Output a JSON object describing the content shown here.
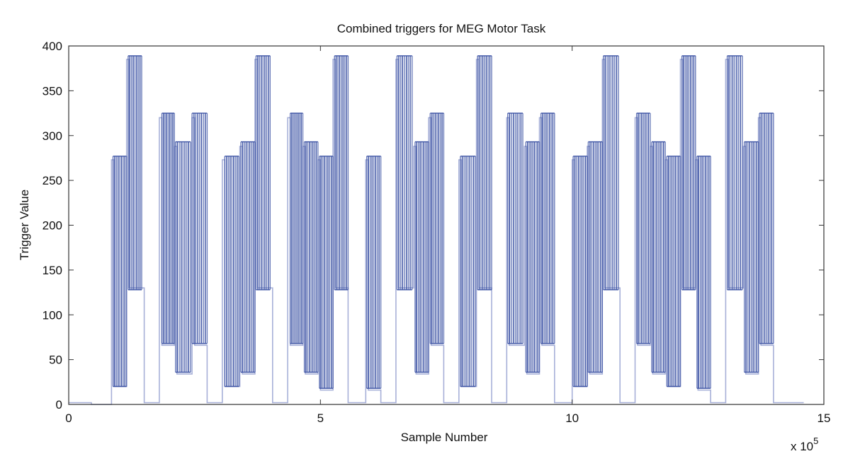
{
  "chart_data": {
    "type": "line",
    "title": "Combined triggers for MEG Motor Task",
    "xlabel": "Sample Number",
    "ylabel": "Trigger Value",
    "x_multiplier_label": "x 10",
    "x_multiplier_exponent": "5",
    "xlim": [
      0,
      15
    ],
    "ylim": [
      0,
      400
    ],
    "xticks": [
      0,
      5,
      10,
      15
    ],
    "yticks": [
      0,
      50,
      100,
      150,
      200,
      250,
      300,
      350,
      400
    ],
    "grid": false,
    "legend": "none",
    "colors": {
      "series_dark": "#3a51a3",
      "series_light": "#a7b0d8",
      "axis": "#333333"
    },
    "series": [
      {
        "color": "#a7b0d8",
        "points": [
          [
            0,
            2
          ],
          [
            0.45,
            2
          ],
          [
            0.45,
            0
          ],
          [
            0.85,
            0
          ],
          [
            0.85,
            273
          ],
          [
            0.9,
            273
          ],
          [
            0.9,
            20
          ],
          [
            1.15,
            20
          ],
          [
            1.15,
            385
          ],
          [
            1.2,
            385
          ],
          [
            1.2,
            130
          ],
          [
            1.5,
            130
          ],
          [
            1.5,
            2
          ],
          [
            1.8,
            2
          ],
          [
            1.8,
            320
          ],
          [
            1.85,
            320
          ],
          [
            1.85,
            66
          ],
          [
            2.1,
            66
          ],
          [
            2.1,
            288
          ],
          [
            2.15,
            288
          ],
          [
            2.15,
            34
          ],
          [
            2.45,
            34
          ],
          [
            2.45,
            320
          ],
          [
            2.5,
            320
          ],
          [
            2.5,
            66
          ],
          [
            2.75,
            66
          ],
          [
            2.75,
            2
          ],
          [
            3.05,
            2
          ],
          [
            3.05,
            273
          ],
          [
            3.1,
            273
          ],
          [
            3.1,
            20
          ],
          [
            3.4,
            20
          ],
          [
            3.4,
            288
          ],
          [
            3.45,
            288
          ],
          [
            3.45,
            34
          ],
          [
            3.7,
            34
          ],
          [
            3.7,
            385
          ],
          [
            3.75,
            385
          ],
          [
            3.75,
            130
          ],
          [
            4.05,
            130
          ],
          [
            4.05,
            2
          ],
          [
            4.35,
            2
          ],
          [
            4.35,
            320
          ],
          [
            4.4,
            320
          ],
          [
            4.4,
            66
          ],
          [
            4.65,
            66
          ],
          [
            4.65,
            288
          ],
          [
            4.7,
            288
          ],
          [
            4.7,
            34
          ],
          [
            4.95,
            34
          ],
          [
            4.95,
            273
          ],
          [
            5.0,
            273
          ],
          [
            5.0,
            16
          ],
          [
            5.25,
            16
          ],
          [
            5.25,
            385
          ],
          [
            5.3,
            385
          ],
          [
            5.3,
            130
          ],
          [
            5.55,
            130
          ],
          [
            5.55,
            2
          ],
          [
            5.9,
            2
          ],
          [
            5.9,
            273
          ],
          [
            5.95,
            273
          ],
          [
            5.95,
            16
          ],
          [
            6.2,
            16
          ],
          [
            6.2,
            2
          ],
          [
            6.5,
            2
          ],
          [
            6.5,
            385
          ],
          [
            6.55,
            385
          ],
          [
            6.55,
            130
          ],
          [
            6.85,
            130
          ],
          [
            6.85,
            288
          ],
          [
            6.9,
            288
          ],
          [
            6.9,
            34
          ],
          [
            7.15,
            34
          ],
          [
            7.15,
            320
          ],
          [
            7.2,
            320
          ],
          [
            7.2,
            66
          ],
          [
            7.45,
            66
          ],
          [
            7.45,
            2
          ],
          [
            7.75,
            2
          ],
          [
            7.75,
            273
          ],
          [
            7.8,
            273
          ],
          [
            7.8,
            20
          ],
          [
            8.1,
            20
          ],
          [
            8.1,
            385
          ],
          [
            8.15,
            385
          ],
          [
            8.15,
            130
          ],
          [
            8.4,
            130
          ],
          [
            8.4,
            2
          ],
          [
            8.7,
            2
          ],
          [
            8.7,
            320
          ],
          [
            8.75,
            320
          ],
          [
            8.75,
            66
          ],
          [
            9.05,
            66
          ],
          [
            9.05,
            288
          ],
          [
            9.1,
            288
          ],
          [
            9.1,
            34
          ],
          [
            9.35,
            34
          ],
          [
            9.35,
            320
          ],
          [
            9.4,
            320
          ],
          [
            9.4,
            66
          ],
          [
            9.65,
            66
          ],
          [
            9.65,
            2
          ],
          [
            10.0,
            2
          ],
          [
            10.0,
            273
          ],
          [
            10.05,
            273
          ],
          [
            10.05,
            20
          ],
          [
            10.3,
            20
          ],
          [
            10.3,
            288
          ],
          [
            10.35,
            288
          ],
          [
            10.35,
            34
          ],
          [
            10.6,
            34
          ],
          [
            10.6,
            385
          ],
          [
            10.65,
            385
          ],
          [
            10.65,
            130
          ],
          [
            10.95,
            130
          ],
          [
            10.95,
            2
          ],
          [
            11.25,
            2
          ],
          [
            11.25,
            320
          ],
          [
            11.3,
            320
          ],
          [
            11.3,
            66
          ],
          [
            11.55,
            66
          ],
          [
            11.55,
            288
          ],
          [
            11.6,
            288
          ],
          [
            11.6,
            34
          ],
          [
            11.85,
            34
          ],
          [
            11.85,
            273
          ],
          [
            11.9,
            273
          ],
          [
            11.9,
            20
          ],
          [
            12.15,
            20
          ],
          [
            12.15,
            385
          ],
          [
            12.2,
            385
          ],
          [
            12.2,
            130
          ],
          [
            12.45,
            130
          ],
          [
            12.45,
            273
          ],
          [
            12.5,
            273
          ],
          [
            12.5,
            16
          ],
          [
            12.75,
            16
          ],
          [
            12.75,
            2
          ],
          [
            13.05,
            2
          ],
          [
            13.05,
            385
          ],
          [
            13.1,
            385
          ],
          [
            13.1,
            130
          ],
          [
            13.4,
            130
          ],
          [
            13.4,
            288
          ],
          [
            13.45,
            288
          ],
          [
            13.45,
            34
          ],
          [
            13.7,
            34
          ],
          [
            13.7,
            320
          ],
          [
            13.75,
            320
          ],
          [
            13.75,
            66
          ],
          [
            14.0,
            66
          ],
          [
            14.0,
            2
          ],
          [
            14.6,
            2
          ]
        ]
      },
      {
        "color": "#3a51a3",
        "groups": [
          {
            "x0": 0.88,
            "x1": 1.15,
            "high": 277,
            "low": 20
          },
          {
            "x0": 1.18,
            "x1": 1.45,
            "high": 389,
            "low": 128
          },
          {
            "x0": 1.85,
            "x1": 2.1,
            "high": 325,
            "low": 68
          },
          {
            "x0": 2.12,
            "x1": 2.42,
            "high": 293,
            "low": 36
          },
          {
            "x0": 2.45,
            "x1": 2.75,
            "high": 325,
            "low": 68
          },
          {
            "x0": 3.1,
            "x1": 3.38,
            "high": 277,
            "low": 20
          },
          {
            "x0": 3.42,
            "x1": 3.7,
            "high": 293,
            "low": 36
          },
          {
            "x0": 3.72,
            "x1": 4.0,
            "high": 389,
            "low": 128
          },
          {
            "x0": 4.4,
            "x1": 4.65,
            "high": 325,
            "low": 68
          },
          {
            "x0": 4.68,
            "x1": 4.95,
            "high": 293,
            "low": 36
          },
          {
            "x0": 4.98,
            "x1": 5.25,
            "high": 277,
            "low": 18
          },
          {
            "x0": 5.28,
            "x1": 5.55,
            "high": 389,
            "low": 128
          },
          {
            "x0": 5.92,
            "x1": 6.2,
            "high": 277,
            "low": 18
          },
          {
            "x0": 6.52,
            "x1": 6.82,
            "high": 389,
            "low": 128
          },
          {
            "x0": 6.88,
            "x1": 7.15,
            "high": 293,
            "low": 36
          },
          {
            "x0": 7.18,
            "x1": 7.45,
            "high": 325,
            "low": 68
          },
          {
            "x0": 7.78,
            "x1": 8.08,
            "high": 277,
            "low": 20
          },
          {
            "x0": 8.12,
            "x1": 8.4,
            "high": 389,
            "low": 128
          },
          {
            "x0": 8.72,
            "x1": 9.02,
            "high": 325,
            "low": 68
          },
          {
            "x0": 9.08,
            "x1": 9.35,
            "high": 293,
            "low": 36
          },
          {
            "x0": 9.38,
            "x1": 9.65,
            "high": 325,
            "low": 68
          },
          {
            "x0": 10.02,
            "x1": 10.3,
            "high": 277,
            "low": 20
          },
          {
            "x0": 10.32,
            "x1": 10.6,
            "high": 293,
            "low": 36
          },
          {
            "x0": 10.62,
            "x1": 10.92,
            "high": 389,
            "low": 128
          },
          {
            "x0": 11.28,
            "x1": 11.55,
            "high": 325,
            "low": 68
          },
          {
            "x0": 11.58,
            "x1": 11.85,
            "high": 293,
            "low": 36
          },
          {
            "x0": 11.88,
            "x1": 12.15,
            "high": 277,
            "low": 20
          },
          {
            "x0": 12.18,
            "x1": 12.45,
            "high": 389,
            "low": 128
          },
          {
            "x0": 12.48,
            "x1": 12.75,
            "high": 277,
            "low": 18
          },
          {
            "x0": 13.08,
            "x1": 13.38,
            "high": 389,
            "low": 128
          },
          {
            "x0": 13.42,
            "x1": 13.7,
            "high": 293,
            "low": 36
          },
          {
            "x0": 13.72,
            "x1": 14.0,
            "high": 325,
            "low": 68
          }
        ]
      }
    ]
  }
}
